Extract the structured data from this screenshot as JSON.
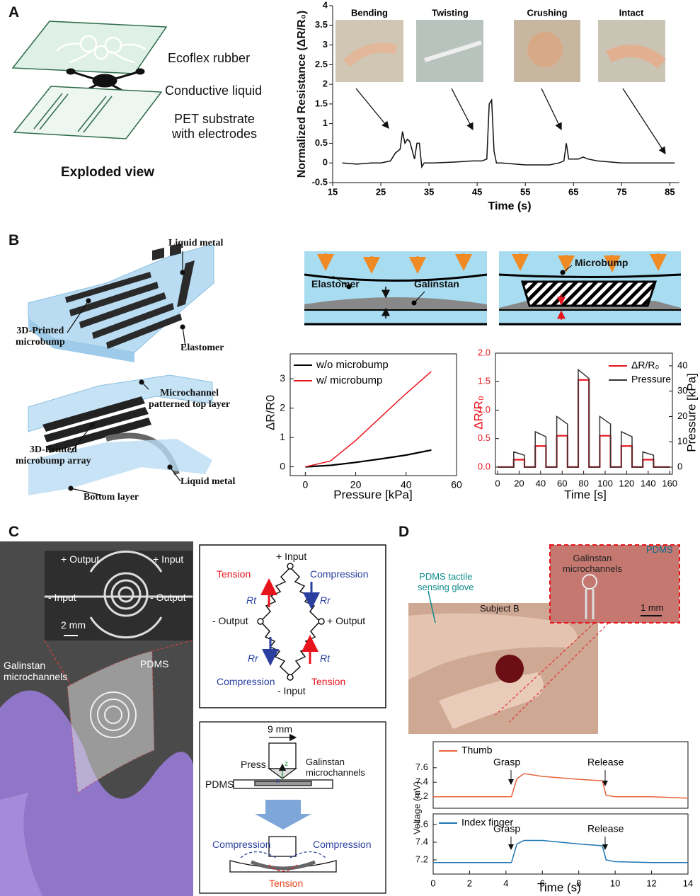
{
  "panel_labels": [
    "A",
    "B",
    "C",
    "D"
  ],
  "panel_a": {
    "layers": [
      "Ecoflex rubber",
      "Conductive liquid",
      "PET substrate\nwith electrodes"
    ],
    "caption": "Exploded view"
  },
  "panel_b": {
    "callouts": [
      "Liquid metal",
      "3D-Printed\nmicrobump",
      "Elastomer",
      "Microchannel\npatterned top layer",
      "3D-Printed\nmicrobump array",
      "Liquid metal",
      "Bottom layer"
    ],
    "schematic": [
      "Elastomer",
      "Galinstan",
      "Microbump"
    ]
  },
  "panel_c": {
    "photo": [
      "+ Output",
      "+ Input",
      "- Input",
      "- Output",
      "2 mm",
      "Galinstan\nmicrochannels",
      "PDMS"
    ],
    "bridge": [
      "+ Input",
      "Tension",
      "Compression",
      "Rt",
      "Rr",
      "- Output",
      "+ Output",
      "Rr",
      "Rt",
      "Compression",
      "Tension",
      "- Input"
    ],
    "setup": [
      "9 mm",
      "Press",
      "Galinstan\nmicrochannels",
      "PDMS",
      "z",
      "x",
      "Compression",
      "Compression",
      "Tension"
    ]
  },
  "panel_d": {
    "photo": [
      "PDMS tactile\nsensing glove",
      "Subject B",
      "Galinstan\nmicrochannels",
      "PDMS",
      "1 mm"
    ],
    "ylabel": "Voltage (mV)"
  },
  "chart_data": [
    {
      "type": "line",
      "xlabel": "Time (s)",
      "ylabel": "Normalized Resistance (ΔR/R₀)",
      "annotations": [
        "Bending",
        "Twisting",
        "Crushing",
        "Intact"
      ],
      "x": [
        17,
        20,
        23,
        25,
        27,
        28,
        29,
        29.5,
        30,
        30.5,
        31,
        32,
        32.5,
        33,
        33.5,
        34,
        36,
        40,
        44,
        46,
        47,
        47.5,
        48,
        48.5,
        49,
        50,
        55,
        60,
        62,
        63,
        63.5,
        64,
        66,
        67,
        68,
        70,
        75,
        80,
        85,
        86
      ],
      "series": [
        {
          "color": "#111111",
          "values": [
            0,
            -0.03,
            0,
            0,
            0.05,
            0.25,
            0.35,
            0.8,
            0.5,
            0.6,
            0.55,
            0.1,
            0.5,
            0.5,
            -0.1,
            0,
            0,
            0.02,
            0.05,
            0.05,
            0.1,
            1.5,
            1.6,
            0.3,
            0,
            0,
            -0.05,
            -0.05,
            0,
            0.05,
            0.5,
            0.1,
            0.1,
            0.15,
            0.1,
            0.05,
            0,
            0,
            0,
            0
          ]
        }
      ],
      "xlim": [
        15,
        87
      ],
      "ylim": [
        -0.5,
        4
      ],
      "xticks": [
        15,
        25,
        35,
        45,
        55,
        65,
        75,
        85
      ],
      "yticks": [
        -0.5,
        0,
        0.5,
        1,
        1.5,
        2,
        2.5,
        3,
        3.5,
        4
      ]
    },
    {
      "type": "line",
      "xlabel": "Pressure [kPa]",
      "ylabel": "ΔR/R0",
      "x": [
        0,
        10,
        20,
        30,
        40,
        50
      ],
      "series": [
        {
          "name": "w/o microbump",
          "color": "#000000",
          "values": [
            0,
            0.05,
            0.15,
            0.27,
            0.4,
            0.57
          ]
        },
        {
          "name": "w/ microbump",
          "color": "#e8141c",
          "values": [
            0,
            0.2,
            0.9,
            1.7,
            2.5,
            3.25
          ]
        }
      ],
      "xlim": [
        -6,
        60
      ],
      "ylim": [
        -0.3,
        3.85
      ],
      "xticks": [
        0,
        20,
        40,
        60
      ],
      "yticks": [
        0,
        1,
        2,
        3
      ]
    },
    {
      "type": "line",
      "xlabel": "Time [s]",
      "ylabel": "ΔR/R₀",
      "y2label": "Pressure [kPa]",
      "x": [
        0,
        15,
        15,
        25,
        25,
        35,
        35,
        45,
        45,
        55,
        55,
        65,
        65,
        75,
        75,
        85,
        85,
        95,
        95,
        105,
        105,
        115,
        115,
        125,
        125,
        135,
        135,
        145,
        145,
        160
      ],
      "series": [
        {
          "name": "ΔR/R₀",
          "color": "#e8141c",
          "values": [
            0,
            0,
            0.13,
            0.13,
            0,
            0,
            0.37,
            0.37,
            0,
            0,
            0.55,
            0.55,
            0,
            0,
            1.53,
            1.53,
            0,
            0,
            0.55,
            0.55,
            0,
            0,
            0.37,
            0.37,
            0,
            0,
            0.13,
            0.13,
            0,
            0
          ]
        },
        {
          "name": "Pressure",
          "color": "#333333",
          "axis": "y2",
          "values": [
            0,
            0,
            6,
            4.7,
            0,
            0,
            14,
            12,
            0,
            0,
            20,
            17,
            0,
            0,
            38.5,
            35,
            0,
            0,
            20,
            17,
            0,
            0,
            14,
            12,
            0,
            0,
            6,
            4.7,
            0,
            0
          ]
        }
      ],
      "xlim": [
        -2,
        162.5
      ],
      "ylim": [
        -0.125,
        2.0
      ],
      "y2lim": [
        -2.8,
        45
      ],
      "xticks": [
        0,
        20,
        40,
        60,
        80,
        100,
        120,
        140,
        160
      ],
      "yticks": [
        {
          "value": 0,
          "label": "0.0"
        },
        0.5,
        {
          "value": 1,
          "label": "1.0"
        },
        1.5,
        {
          "value": 2,
          "label": "2.0"
        }
      ],
      "y2ticks": [
        0,
        10,
        20,
        30,
        40
      ]
    },
    {
      "type": "line",
      "annotations": [
        "Grasp",
        "Release"
      ],
      "x": [
        0,
        4.3,
        4.6,
        5,
        6,
        8,
        9.3,
        9.5,
        10,
        12,
        14
      ],
      "series": [
        {
          "name": "Thumb",
          "color": "#e8643c",
          "values": [
            7.2,
            7.2,
            7.45,
            7.52,
            7.48,
            7.44,
            7.42,
            7.22,
            7.2,
            7.2,
            7.18
          ]
        }
      ],
      "xlim": [
        0,
        14
      ],
      "ylim": [
        7.04,
        7.96
      ],
      "yticks": [
        7.2,
        7.4,
        7.6
      ]
    },
    {
      "type": "line",
      "xlabel": "Time (s)",
      "annotations": [
        "Grasp",
        "Release"
      ],
      "x": [
        0,
        4.3,
        4.6,
        5,
        6,
        8,
        9.3,
        9.5,
        10,
        12,
        14
      ],
      "series": [
        {
          "name": "Index finger",
          "color": "#1f77b4",
          "values": [
            7.17,
            7.17,
            7.38,
            7.42,
            7.42,
            7.38,
            7.36,
            7.2,
            7.18,
            7.17,
            7.17
          ]
        }
      ],
      "xlim": [
        0,
        14
      ],
      "ylim": [
        7.04,
        7.72
      ],
      "xticks": [
        0,
        2,
        4,
        6,
        8,
        10,
        12,
        14
      ],
      "yticks": [
        7.2,
        7.4,
        7.6
      ]
    }
  ]
}
